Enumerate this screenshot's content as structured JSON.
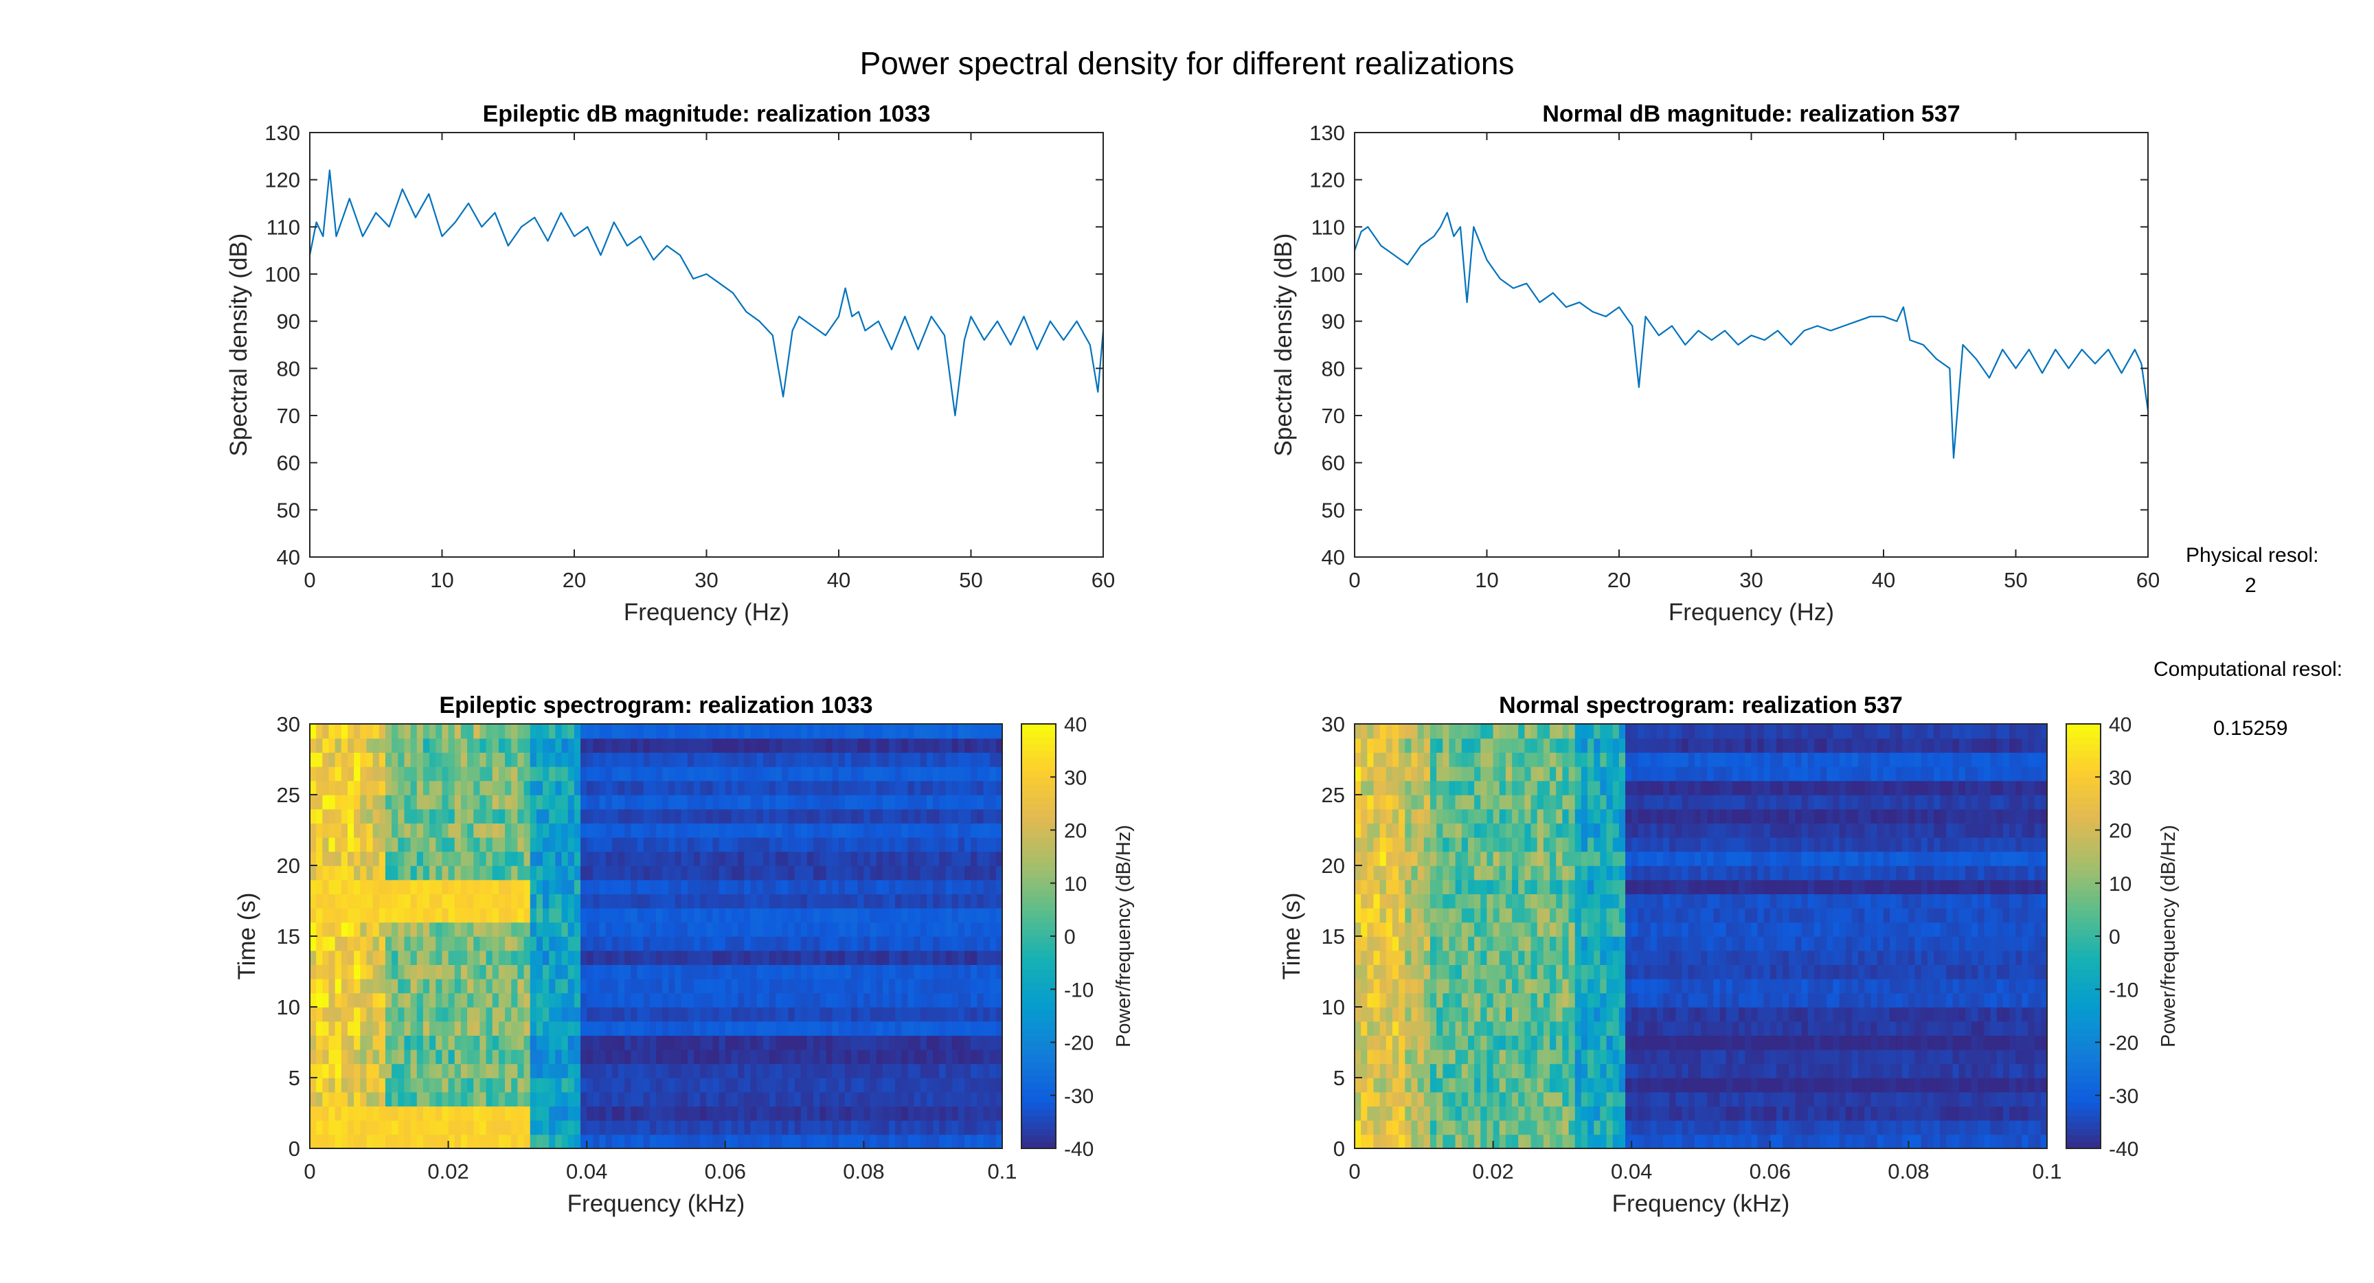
{
  "figure": {
    "title": "Power spectral density for different realizations"
  },
  "annotations": {
    "physical_label": "Physical resol:",
    "physical_value": "2",
    "computational_label": "Computational resol:",
    "computational_value": "0.15259"
  },
  "colors": {
    "line": "#0072BD",
    "axis": "#262626",
    "colormap": "parula"
  },
  "chart_data": [
    {
      "id": "psd_epileptic",
      "type": "line",
      "title": "Epileptic dB magnitude: realization 1033",
      "xlabel": "Frequency (Hz)",
      "ylabel": "Spectral density (dB)",
      "xlim": [
        0,
        60
      ],
      "ylim": [
        40,
        130
      ],
      "xticks": [
        "0",
        "10",
        "20",
        "30",
        "40",
        "50",
        "60"
      ],
      "yticks": [
        "40",
        "50",
        "60",
        "70",
        "80",
        "90",
        "100",
        "110",
        "120",
        "130"
      ],
      "grid": false,
      "series": [
        {
          "x": [
            0,
            0.5,
            1,
            1.5,
            2,
            3,
            4,
            5,
            6,
            7,
            8,
            9,
            10,
            11,
            12,
            13,
            14,
            15,
            16,
            17,
            18,
            19,
            20,
            21,
            22,
            23,
            24,
            25,
            26,
            27,
            28,
            29,
            30,
            31,
            32,
            33,
            34,
            35,
            35.8,
            36.5,
            37,
            38,
            39,
            40,
            40.5,
            41,
            41.5,
            42,
            43,
            44,
            45,
            46,
            47,
            48,
            48.8,
            49.5,
            50,
            51,
            52,
            53,
            54,
            55,
            56,
            57,
            58,
            59,
            59.6,
            60
          ],
          "y": [
            104,
            111,
            108,
            122,
            108,
            116,
            108,
            113,
            110,
            118,
            112,
            117,
            108,
            111,
            115,
            110,
            113,
            106,
            110,
            112,
            107,
            113,
            108,
            110,
            104,
            111,
            106,
            108,
            103,
            106,
            104,
            99,
            100,
            98,
            96,
            92,
            90,
            87,
            74,
            88,
            91,
            89,
            87,
            91,
            97,
            91,
            92,
            88,
            90,
            84,
            91,
            84,
            91,
            87,
            70,
            86,
            91,
            86,
            90,
            85,
            91,
            84,
            90,
            86,
            90,
            85,
            75,
            88
          ]
        }
      ]
    },
    {
      "id": "psd_normal",
      "type": "line",
      "title": "Normal dB magnitude: realization 537",
      "xlabel": "Frequency (Hz)",
      "ylabel": "Spectral density (dB)",
      "xlim": [
        0,
        60
      ],
      "ylim": [
        40,
        130
      ],
      "xticks": [
        "0",
        "10",
        "20",
        "30",
        "40",
        "50",
        "60"
      ],
      "yticks": [
        "40",
        "50",
        "60",
        "70",
        "80",
        "90",
        "100",
        "110",
        "120",
        "130"
      ],
      "grid": false,
      "series": [
        {
          "x": [
            0,
            0.5,
            1,
            2,
            3,
            4,
            5,
            6,
            6.5,
            7,
            7.5,
            8,
            8.5,
            9,
            10,
            11,
            12,
            13,
            14,
            15,
            16,
            17,
            18,
            19,
            20,
            21,
            21.5,
            22,
            23,
            24,
            25,
            26,
            27,
            28,
            29,
            30,
            31,
            32,
            33,
            34,
            35,
            36,
            37,
            38,
            39,
            40,
            41,
            41.5,
            42,
            43,
            44,
            45,
            45.3,
            46,
            47,
            48,
            49,
            50,
            51,
            52,
            53,
            54,
            55,
            56,
            57,
            58,
            59,
            59.5,
            60
          ],
          "y": [
            105,
            109,
            110,
            106,
            104,
            102,
            106,
            108,
            110,
            113,
            108,
            110,
            94,
            110,
            103,
            99,
            97,
            98,
            94,
            96,
            93,
            94,
            92,
            91,
            93,
            89,
            76,
            91,
            87,
            89,
            85,
            88,
            86,
            88,
            85,
            87,
            86,
            88,
            85,
            88,
            89,
            88,
            89,
            90,
            91,
            91,
            90,
            93,
            86,
            85,
            82,
            80,
            61,
            85,
            82,
            78,
            84,
            80,
            84,
            79,
            84,
            80,
            84,
            81,
            84,
            79,
            84,
            81,
            71
          ]
        }
      ]
    },
    {
      "id": "spec_epileptic",
      "type": "heatmap",
      "title": "Epileptic spectrogram: realization 1033",
      "xlabel": "Frequency (kHz)",
      "ylabel": "Time (s)",
      "xlim": [
        0,
        0.11
      ],
      "ylim": [
        0,
        30
      ],
      "xticks": [
        "0",
        "0.02",
        "0.04",
        "0.06",
        "0.08",
        "0.1"
      ],
      "yticks": [
        "0",
        "5",
        "10",
        "15",
        "20",
        "25",
        "30"
      ],
      "colorbar": {
        "label": "Power/frequency (dB/Hz)",
        "range": [
          -40,
          40
        ],
        "ticks": [
          "40",
          "30",
          "20",
          "10",
          "0",
          "-10",
          "-20",
          "-30",
          "-40"
        ]
      },
      "freq_breaks_khz": [
        0.008,
        0.012,
        0.035,
        0.043
      ],
      "band_levels_db": [
        29,
        22,
        7,
        -10,
        -34
      ],
      "seizure_rows_s": [
        [
          0,
          3
        ],
        [
          16,
          18.5
        ]
      ],
      "seizure_level_db": 32,
      "cutoff_khz": 0.035
    },
    {
      "id": "spec_normal",
      "type": "heatmap",
      "title": "Normal spectrogram: realization 537",
      "xlabel": "Frequency (kHz)",
      "ylabel": "Time (s)",
      "xlim": [
        0,
        0.11
      ],
      "ylim": [
        0,
        30
      ],
      "xticks": [
        "0",
        "0.02",
        "0.04",
        "0.06",
        "0.08",
        "0.1"
      ],
      "yticks": [
        "0",
        "5",
        "10",
        "15",
        "20",
        "25",
        "30"
      ],
      "colorbar": {
        "label": "Power/frequency (dB/Hz)",
        "range": [
          -40,
          40
        ],
        "ticks": [
          "40",
          "30",
          "20",
          "10",
          "0",
          "-10",
          "-20",
          "-30",
          "-40"
        ]
      },
      "freq_breaks_khz": [
        0.008,
        0.012,
        0.035,
        0.043
      ],
      "band_levels_db": [
        24,
        15,
        5,
        -8,
        -36
      ],
      "seizure_rows_s": [],
      "seizure_level_db": 0,
      "cutoff_khz": 0.035
    }
  ]
}
